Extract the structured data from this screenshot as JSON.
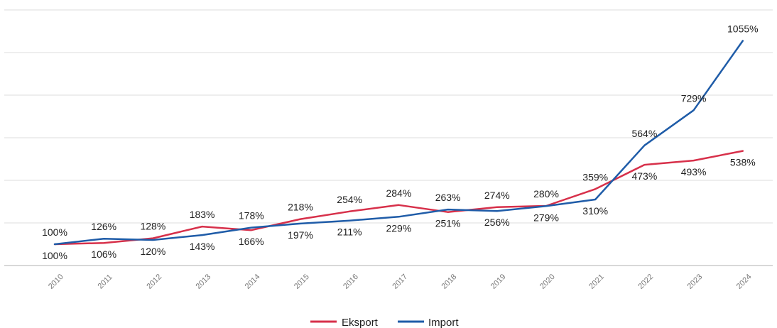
{
  "chart_data": {
    "type": "line",
    "title": "",
    "xlabel": "",
    "ylabel": "",
    "categories": [
      "2010",
      "2011",
      "2012",
      "2013",
      "2014",
      "2015",
      "2016",
      "2017",
      "2018",
      "2019",
      "2020",
      "2021",
      "2022",
      "2023",
      "2024"
    ],
    "ylim": [
      0,
      1200
    ],
    "grid": true,
    "legend_position": "bottom",
    "series": [
      {
        "name": "Eksport",
        "color": "#d7304a",
        "values": [
          100,
          106,
          128,
          183,
          166,
          218,
          254,
          284,
          251,
          274,
          280,
          359,
          473,
          493,
          538
        ],
        "labels": [
          "100%",
          "106%",
          "128%",
          "183%",
          "166%",
          "218%",
          "254%",
          "284%",
          "251%",
          "274%",
          "280%",
          "359%",
          "473%",
          "493%",
          "538%"
        ]
      },
      {
        "name": "Import",
        "color": "#1f5ca8",
        "values": [
          100,
          126,
          120,
          143,
          178,
          197,
          211,
          229,
          263,
          256,
          279,
          310,
          564,
          729,
          1055
        ],
        "labels": [
          "100%",
          "126%",
          "120%",
          "143%",
          "178%",
          "197%",
          "211%",
          "229%",
          "263%",
          "256%",
          "279%",
          "310%",
          "564%",
          "729%",
          "1055%"
        ]
      }
    ]
  }
}
